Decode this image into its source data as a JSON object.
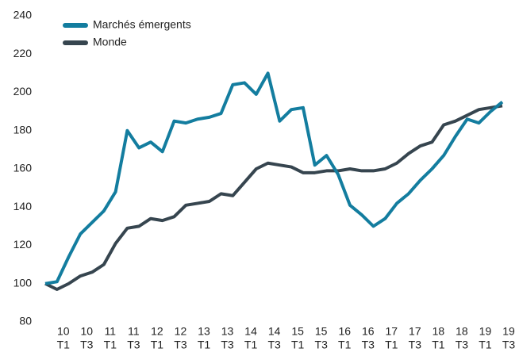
{
  "chart_data": {
    "type": "line",
    "categories": [
      null,
      [
        "10",
        "T1"
      ],
      null,
      [
        "10",
        "T3"
      ],
      null,
      [
        "11",
        "T1"
      ],
      null,
      [
        "11",
        "T3"
      ],
      null,
      [
        "12",
        "T1"
      ],
      null,
      [
        "12",
        "T3"
      ],
      null,
      [
        "13",
        "T1"
      ],
      null,
      [
        "13",
        "T3"
      ],
      null,
      [
        "14",
        "T1"
      ],
      null,
      [
        "14",
        "T3"
      ],
      null,
      [
        "15",
        "T1"
      ],
      null,
      [
        "15",
        "T3"
      ],
      null,
      [
        "16",
        "T1"
      ],
      null,
      [
        "16",
        "T3"
      ],
      null,
      [
        "17",
        "T1"
      ],
      null,
      [
        "17",
        "T3"
      ],
      null,
      [
        "18",
        "T1"
      ],
      null,
      [
        "18",
        "T3"
      ],
      null,
      [
        "19",
        "T1"
      ],
      null,
      [
        "19",
        "T3"
      ]
    ],
    "series": [
      {
        "name": "Marchés émergents",
        "color": "#137d9f",
        "values": [
          100,
          101,
          114,
          126,
          132,
          138,
          148,
          180,
          171,
          174,
          169,
          185,
          184,
          186,
          187,
          189,
          204,
          205,
          199,
          210,
          185,
          191,
          192,
          162,
          167,
          157,
          141,
          136,
          130,
          134,
          142,
          147,
          154,
          160,
          167,
          177,
          186,
          184,
          190,
          195
        ]
      },
      {
        "name": "Monde",
        "color": "#36454f",
        "values": [
          100,
          97,
          100,
          104,
          106,
          110,
          121,
          129,
          130,
          134,
          133,
          135,
          141,
          142,
          143,
          147,
          146,
          153,
          160,
          163,
          162,
          161,
          158,
          158,
          159,
          159,
          160,
          159,
          159,
          160,
          163,
          168,
          172,
          174,
          183,
          185,
          188,
          191,
          192,
          193
        ]
      }
    ],
    "ylim": [
      80,
      240
    ],
    "yticks": [
      80,
      100,
      120,
      140,
      160,
      180,
      200,
      220,
      240
    ],
    "legend": "upper left",
    "grid": false
  }
}
